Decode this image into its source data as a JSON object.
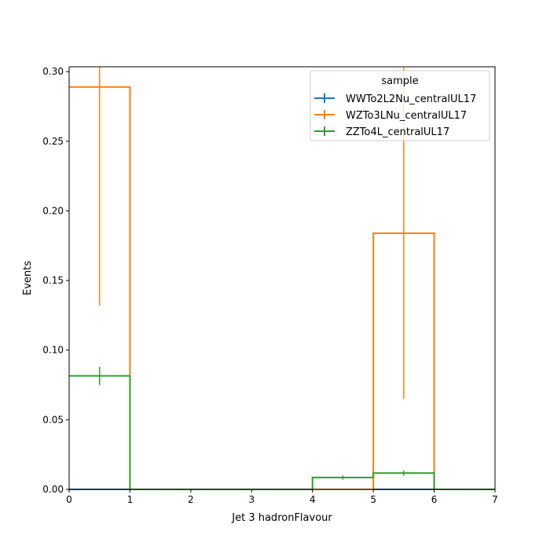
{
  "chart_data": {
    "type": "histogram",
    "title": "",
    "xlabel": "Jet 3 hadronFlavour",
    "ylabel": "Events",
    "xlim": [
      0,
      7
    ],
    "ylim": [
      0,
      0.3035
    ],
    "x_ticks": [
      0,
      1,
      2,
      3,
      4,
      5,
      6,
      7
    ],
    "y_ticks": [
      0.0,
      0.05,
      0.1,
      0.15,
      0.2,
      0.25,
      0.3
    ],
    "x_tick_labels": [
      "0",
      "1",
      "2",
      "3",
      "4",
      "5",
      "6",
      "7"
    ],
    "y_tick_labels": [
      "0.00",
      "0.05",
      "0.10",
      "0.15",
      "0.20",
      "0.25",
      "0.30"
    ],
    "bin_edges": [
      0,
      1,
      2,
      3,
      4,
      5,
      6,
      7
    ],
    "legend": {
      "title": "sample",
      "location": "upper right"
    },
    "series": [
      {
        "name": "WWTo2L2Nu_centralUL17",
        "color": "#1f77b4",
        "values": [
          0,
          0,
          0,
          0,
          0,
          0,
          0
        ],
        "errors": [
          0,
          0,
          0,
          0,
          0,
          0,
          0
        ]
      },
      {
        "name": "WZTo3LNu_centralUL17",
        "color": "#ff7f0e",
        "values": [
          0.289,
          0,
          0,
          0,
          0,
          0.184,
          0
        ],
        "errors": [
          0.157,
          0,
          0,
          0,
          0,
          0.119,
          0
        ]
      },
      {
        "name": "ZZTo4L_centralUL17",
        "color": "#2ca02c",
        "values": [
          0.0815,
          0,
          0,
          0,
          0.0085,
          0.0117,
          0
        ],
        "errors": [
          0.0065,
          0,
          0,
          0,
          0.0015,
          0.0019,
          0
        ]
      }
    ]
  }
}
